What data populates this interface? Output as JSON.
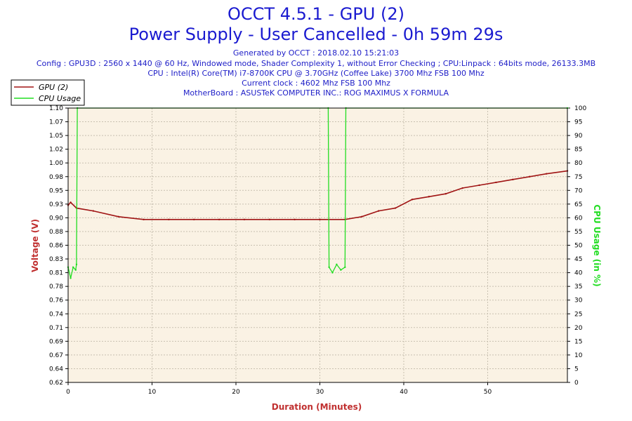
{
  "header": {
    "title_line1": "OCCT 4.5.1 - GPU (2)",
    "title_line2": "Power Supply - User Cancelled - 0h 59m 29s",
    "generated": "Generated by OCCT : 2018.02.10 15:21:03",
    "config": "Config : GPU3D : 2560 x 1440 @ 60 Hz, Windowed mode, Shader Complexity 1, without Error Checking ; CPU:Linpack : 64bits mode, 26133.3MB",
    "cpu": "CPU : Intel(R) Core(TM) i7-8700K CPU @ 3.70GHz (Coffee Lake) 3700 Mhz FSB 100 Mhz",
    "clock": "Current clock : 4602 Mhz FSB 100 Mhz",
    "motherboard": "MotherBoard : ASUSTeK COMPUTER INC.: ROG MAXIMUS X FORMULA"
  },
  "chart_data": {
    "type": "line",
    "xlabel": "Duration (Minutes)",
    "ylabel": "Voltage (V)",
    "y2label": "CPU Usage (in %)",
    "xlim": [
      0,
      59.5
    ],
    "ylim": [
      0.62,
      1.1
    ],
    "y2lim": [
      0,
      100
    ],
    "x_ticks": [
      0,
      10,
      20,
      30,
      40,
      50
    ],
    "y_ticks": [
      "0.62",
      "0.64",
      "0.67",
      "0.69",
      "0.71",
      "0.74",
      "0.76",
      "0.78",
      "0.81",
      "0.83",
      "0.86",
      "0.88",
      "0.90",
      "0.93",
      "0.95",
      "0.98",
      "1.00",
      "1.02",
      "1.05",
      "1.07",
      "1.10"
    ],
    "y2_ticks": [
      0,
      5,
      10,
      15,
      20,
      25,
      30,
      35,
      40,
      45,
      50,
      55,
      60,
      65,
      70,
      75,
      80,
      85,
      90,
      95,
      100
    ],
    "grid": true,
    "legend_position": "top-left",
    "colors": {
      "voltage": "#a01414",
      "cpu": "#22dd22",
      "plot_bg": "#faf2e4",
      "grid": "#c8c0b0",
      "title": "#1a1ad0",
      "axis_label_red": "#c03030"
    },
    "series": [
      {
        "name": "GPU (2)",
        "axis": "left",
        "x": [
          0,
          0.3,
          1,
          3,
          6,
          9,
          12,
          15,
          18,
          21,
          24,
          27,
          30,
          33,
          35,
          37,
          39,
          41,
          43,
          45,
          47,
          49,
          51,
          53,
          55,
          57,
          59.5
        ],
        "values": [
          0.93,
          0.935,
          0.925,
          0.92,
          0.91,
          0.905,
          0.905,
          0.905,
          0.905,
          0.905,
          0.905,
          0.905,
          0.905,
          0.905,
          0.91,
          0.92,
          0.925,
          0.94,
          0.945,
          0.95,
          0.96,
          0.965,
          0.97,
          0.975,
          0.98,
          0.985,
          0.99
        ]
      },
      {
        "name": "CPU Usage",
        "axis": "right",
        "x": [
          0,
          0.3,
          0.6,
          0.9,
          1.0,
          1.1,
          31.0,
          31.1,
          31.5,
          32.0,
          32.5,
          33.0,
          33.1,
          59.5
        ],
        "values": [
          42,
          38,
          42,
          41,
          43,
          100,
          100,
          42,
          40,
          43,
          41,
          42,
          100,
          100
        ]
      }
    ]
  }
}
